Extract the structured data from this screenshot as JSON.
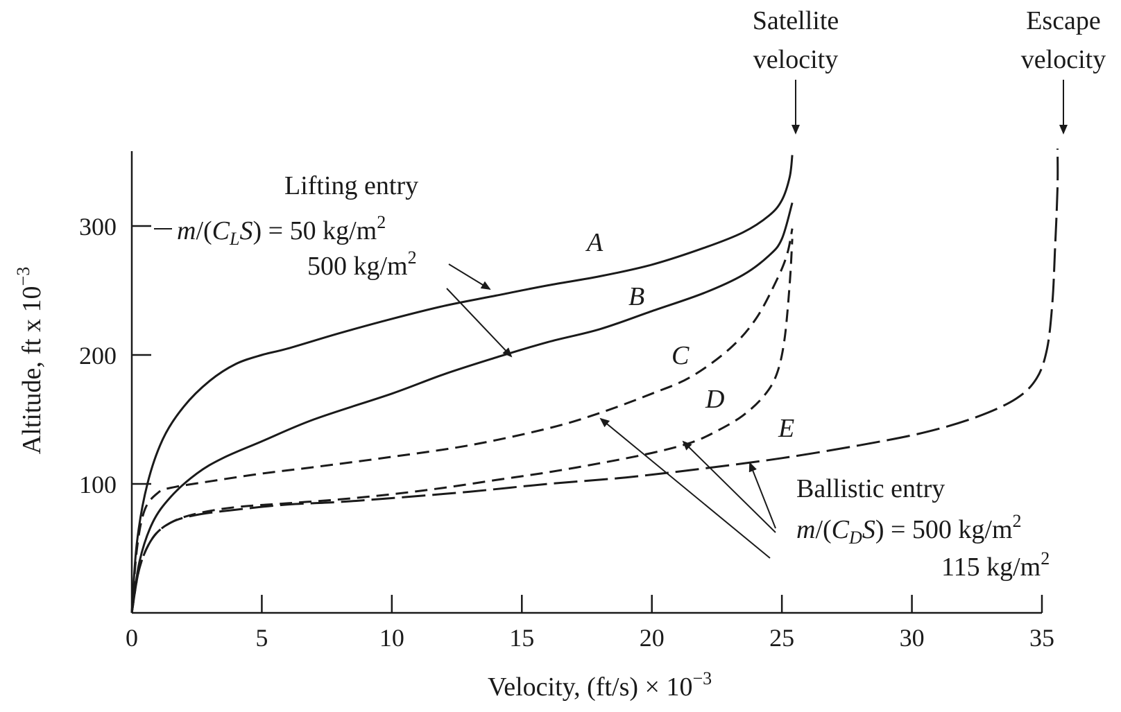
{
  "chart_data": {
    "type": "line",
    "xlabel": "Velocity, (ft/s) × 10",
    "xlabel_exp": "−3",
    "ylabel": "Altitude, ft x 10",
    "ylabel_exp": "−3",
    "xlim": [
      0,
      35
    ],
    "ylim": [
      0,
      360
    ],
    "x_ticks": [
      0,
      5,
      10,
      15,
      20,
      25,
      30,
      35
    ],
    "y_ticks": [
      100,
      200,
      300
    ],
    "grid": false,
    "series": [
      {
        "name": "A",
        "style": "solid",
        "x": [
          0,
          0.2,
          0.6,
          1.2,
          2,
          3,
          4,
          5,
          6,
          8,
          10,
          12,
          14,
          16,
          18,
          20,
          22,
          23.5,
          24.5,
          25,
          25.3,
          25.4
        ],
        "y": [
          0,
          55,
          100,
          135,
          160,
          180,
          193,
          200,
          205,
          217,
          228,
          238,
          246,
          254,
          261,
          270,
          283,
          295,
          308,
          320,
          338,
          355
        ]
      },
      {
        "name": "B",
        "style": "solid",
        "x": [
          0,
          0.3,
          0.8,
          1.5,
          2.5,
          3.5,
          5,
          7,
          10,
          12,
          14,
          16,
          18,
          20,
          22,
          23.5,
          24.5,
          25,
          25.4
        ],
        "y": [
          0,
          40,
          70,
          90,
          108,
          120,
          133,
          150,
          170,
          185,
          198,
          210,
          220,
          234,
          248,
          262,
          277,
          290,
          318
        ]
      },
      {
        "name": "C",
        "style": "dashed",
        "x": [
          0,
          0.2,
          0.5,
          1,
          1.5,
          3,
          5,
          7,
          10,
          13,
          16,
          18,
          20,
          21.5,
          23,
          24,
          24.8,
          25.2,
          25.4
        ],
        "y": [
          0,
          50,
          80,
          93,
          97,
          102,
          108,
          113,
          121,
          130,
          143,
          155,
          170,
          183,
          205,
          228,
          258,
          278,
          298
        ]
      },
      {
        "name": "D",
        "style": "dashed",
        "x": [
          0,
          0.3,
          0.8,
          1.5,
          2.5,
          4,
          6,
          8,
          10,
          12,
          14,
          16,
          18,
          20,
          21.5,
          22.5,
          23.5,
          24.3,
          24.8,
          25.1,
          25.3,
          25.4
        ],
        "y": [
          0,
          35,
          58,
          70,
          77,
          82,
          85,
          88,
          92,
          97,
          103,
          109,
          116,
          124,
          132,
          141,
          153,
          168,
          185,
          212,
          255,
          290
        ]
      },
      {
        "name": "E",
        "style": "dash-dot",
        "x": [
          0,
          0.3,
          0.8,
          1.5,
          2.5,
          4,
          6,
          8,
          10,
          13,
          16,
          19,
          22,
          25,
          28,
          30.5,
          32.5,
          34,
          34.8,
          35.2,
          35.4,
          35.5,
          35.6,
          35.6
        ],
        "y": [
          0,
          35,
          58,
          70,
          76,
          80,
          84,
          86,
          89,
          94,
          100,
          105,
          112,
          120,
          130,
          140,
          152,
          166,
          182,
          205,
          240,
          280,
          330,
          360
        ]
      }
    ],
    "curve_labels": [
      "A",
      "B",
      "C",
      "D",
      "E"
    ],
    "annotations": {
      "satellite": "Satellite",
      "satellite2": "velocity",
      "escape": "Escape",
      "escape2": "velocity",
      "lifting_title": "Lifting entry",
      "lifting_m": "m",
      "lifting_C": "C",
      "lifting_sub": "L",
      "lifting_S": "S",
      "lifting_val1": ") = 50 kg/m",
      "lifting_val2": "500 kg/m",
      "ballistic_title": "Ballistic entry",
      "ballistic_m": "m",
      "ballistic_C": "C",
      "ballistic_sub": "D",
      "ballistic_S": "S",
      "ballistic_val1": ") = 500 kg/m",
      "ballistic_val2": "115 kg/m",
      "sq": "2"
    }
  }
}
